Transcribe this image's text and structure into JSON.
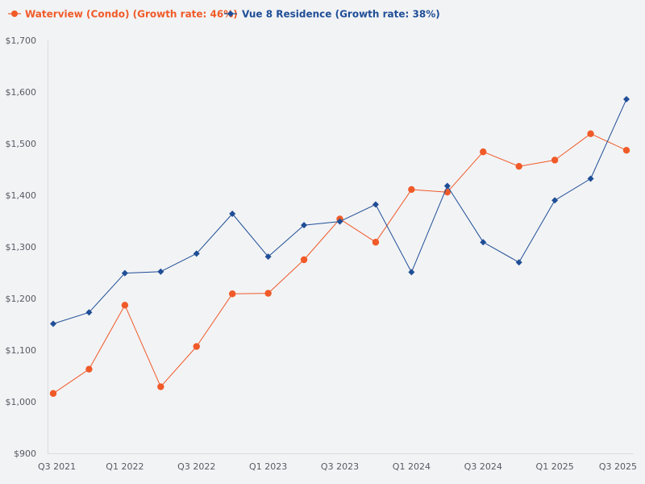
{
  "chart_data": {
    "type": "line",
    "title": "",
    "xlabel": "",
    "ylabel": "",
    "categories": [
      "Q3 2021",
      "Q4 2021",
      "Q1 2022",
      "Q2 2022",
      "Q3 2022",
      "Q4 2022",
      "Q1 2023",
      "Q2 2023",
      "Q3 2023",
      "Q4 2023",
      "Q1 2024",
      "Q2 2024",
      "Q3 2024",
      "Q4 2024",
      "Q1 2025",
      "Q2 2025",
      "Q3 2025"
    ],
    "x_tick_labels": [
      "Q3 2021",
      "Q1 2022",
      "Q3 2022",
      "Q1 2023",
      "Q3 2023",
      "Q1 2024",
      "Q3 2024",
      "Q1 2025",
      "Q3 2025"
    ],
    "ylim": [
      900,
      1700
    ],
    "y_ticks": [
      900,
      1000,
      1100,
      1200,
      1300,
      1400,
      1500,
      1600,
      1700
    ],
    "y_tick_labels": [
      "$900",
      "$1,000",
      "$1,100",
      "$1,200",
      "$1,300",
      "$1,400",
      "$1,500",
      "$1,600",
      "$1,700"
    ],
    "legend_position": "top-left",
    "grid": false,
    "series": [
      {
        "name": "Waterview (Condo) (Growth rate: 46%)",
        "color": "#f05a28",
        "marker": "circle",
        "values": [
          1016,
          1063,
          1187,
          1029,
          1107,
          1209,
          1210,
          1275,
          1354,
          1309,
          1411,
          1406,
          1484,
          1456,
          1468,
          1519,
          1487
        ]
      },
      {
        "name": "Vue 8 Residence (Growth rate: 38%)",
        "color": "#1f4e96",
        "marker": "diamond",
        "values": [
          1151,
          1173,
          1249,
          1252,
          1287,
          1364,
          1281,
          1342,
          1349,
          1382,
          1251,
          1418,
          1309,
          1270,
          1390,
          1432,
          1586
        ]
      }
    ]
  }
}
